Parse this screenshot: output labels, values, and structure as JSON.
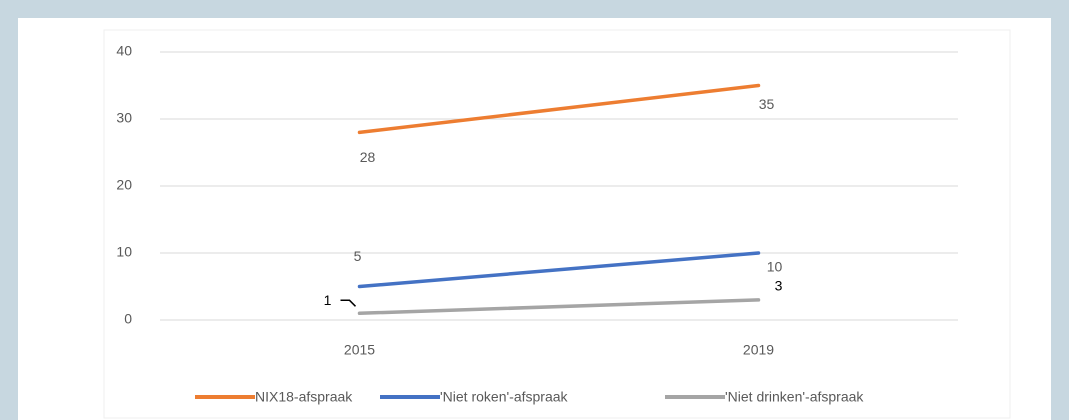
{
  "chart_data": {
    "type": "line",
    "categories": [
      "2015",
      "2019"
    ],
    "series": [
      {
        "name": "NIX18-afspraak",
        "color": "#ed7d31",
        "values": [
          28,
          35
        ]
      },
      {
        "name": "'Niet roken'-afspraak",
        "color": "#4472c4",
        "values": [
          5,
          10
        ]
      },
      {
        "name": "'Niet drinken'-afspraak",
        "color": "#a5a5a5",
        "values": [
          1,
          3
        ]
      }
    ],
    "ylim": [
      0,
      40
    ],
    "yticks": [
      0,
      10,
      20,
      30,
      40
    ],
    "grid": true,
    "legend": "bottom"
  }
}
